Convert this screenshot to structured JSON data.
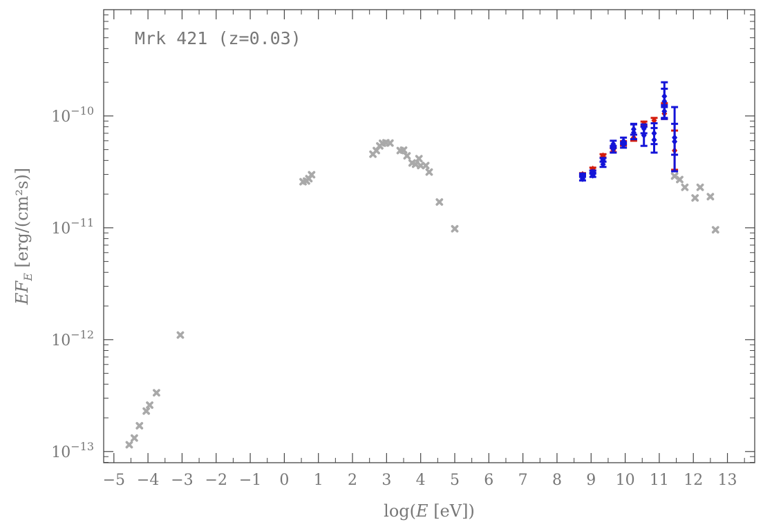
{
  "chart_data": {
    "type": "scatter",
    "annotation": "Mrk 421 (z=0.03)",
    "xlabel": {
      "pre": "log(",
      "italic": "E",
      "post": " [eV])"
    },
    "ylabel": {
      "main": "EF",
      "sub": "E",
      "unit": " [erg/(cm²s)]"
    },
    "xlim": [
      -5.3,
      13.8
    ],
    "ylim_log10": [
      -13.1,
      -9.05
    ],
    "x_ticks": [
      "−5",
      "−4",
      "−3",
      "−2",
      "−1",
      "0",
      "1",
      "2",
      "3",
      "4",
      "5",
      "6",
      "7",
      "8",
      "9",
      "10",
      "11",
      "12",
      "13"
    ],
    "y_ticks": [
      {
        "base": "10",
        "exp": "−13"
      },
      {
        "base": "10",
        "exp": "−12"
      },
      {
        "base": "10",
        "exp": "−11"
      },
      {
        "base": "10",
        "exp": "−10"
      }
    ],
    "grid": false,
    "colors": {
      "archival": "#a9a9a9",
      "red": "#d41c0c",
      "blue": "#1414d8",
      "frame": "#444444"
    },
    "series": [
      {
        "marker": "cross",
        "color": "#a9a9a9",
        "points": [
          [
            -4.55,
            1.15e-13
          ],
          [
            -4.4,
            1.32e-13
          ],
          [
            -4.25,
            1.7e-13
          ],
          [
            -4.05,
            2.3e-13
          ],
          [
            -3.95,
            2.6e-13
          ],
          [
            -3.75,
            3.35e-13
          ],
          [
            -3.05,
            1.1e-12
          ],
          [
            0.55,
            2.58e-11
          ],
          [
            0.65,
            2.62e-11
          ],
          [
            0.72,
            2.75e-11
          ],
          [
            0.8,
            2.98e-11
          ],
          [
            2.6,
            4.55e-11
          ],
          [
            2.7,
            4.9e-11
          ],
          [
            2.8,
            5.4e-11
          ],
          [
            2.88,
            5.7e-11
          ],
          [
            2.98,
            5.75e-11
          ],
          [
            3.1,
            5.72e-11
          ],
          [
            3.4,
            4.9e-11
          ],
          [
            3.5,
            4.95e-11
          ],
          [
            3.6,
            4.4e-11
          ],
          [
            3.75,
            3.8e-11
          ],
          [
            3.85,
            3.7e-11
          ],
          [
            3.95,
            4.15e-11
          ],
          [
            4.0,
            3.6e-11
          ],
          [
            4.15,
            3.6e-11
          ],
          [
            4.25,
            3.15e-11
          ],
          [
            4.55,
            1.7e-11
          ],
          [
            5.0,
            9.8e-12
          ],
          [
            11.45,
            2.9e-11
          ],
          [
            11.6,
            2.7e-11
          ],
          [
            11.75,
            2.3e-11
          ],
          [
            12.05,
            1.85e-11
          ],
          [
            12.2,
            2.3e-11
          ],
          [
            12.5,
            1.9e-11
          ],
          [
            12.65,
            9.6e-12
          ]
        ]
      },
      {
        "marker": "errorbar",
        "color": "#d41c0c",
        "points": [
          [
            8.75,
            3e-11,
            2.92e-11,
            3.08e-11
          ],
          [
            9.05,
            3.35e-11,
            3.25e-11,
            3.45e-11
          ],
          [
            9.35,
            4.4e-11,
            4.25e-11,
            4.55e-11
          ],
          [
            9.65,
            4.95e-11,
            4.75e-11,
            5.15e-11
          ],
          [
            9.95,
            5.7e-11,
            5.45e-11,
            5.95e-11
          ],
          [
            10.25,
            6.4e-11,
            6e-11,
            6.8e-11
          ],
          [
            10.55,
            8.5e-11,
            8.1e-11,
            8.9e-11
          ],
          [
            10.85,
            9.1e-11,
            8.6e-11,
            9.6e-11
          ],
          [
            11.15,
            1.05e-10,
            9.4e-11,
            1.3e-10
          ],
          [
            11.45,
            4.9e-11,
            3.3e-11,
            7.4e-11
          ]
        ]
      },
      {
        "marker": "errorbar",
        "color": "#1414d8",
        "points": [
          [
            8.75,
            2.75e-11,
            2.65e-11,
            2.95e-11
          ],
          [
            8.75,
            2.95e-11,
            2.85e-11,
            3.05e-11
          ],
          [
            9.05,
            2.95e-11,
            2.85e-11,
            3.1e-11
          ],
          [
            9.05,
            3.15e-11,
            3.05e-11,
            3.25e-11
          ],
          [
            9.35,
            3.7e-11,
            3.5e-11,
            3.9e-11
          ],
          [
            9.35,
            4.05e-11,
            3.9e-11,
            4.2e-11
          ],
          [
            9.65,
            5.05e-11,
            4.7e-11,
            5.4e-11
          ],
          [
            9.65,
            5.6e-11,
            5.2e-11,
            6e-11
          ],
          [
            9.95,
            5.5e-11,
            5.2e-11,
            5.8e-11
          ],
          [
            9.95,
            5.95e-11,
            5.6e-11,
            6.4e-11
          ],
          [
            10.25,
            7.1e-11,
            6.2e-11,
            8.4e-11
          ],
          [
            10.25,
            7.6e-11,
            6.8e-11,
            8.5e-11
          ],
          [
            10.55,
            6.7e-11,
            5.4e-11,
            8e-11
          ],
          [
            10.55,
            7.7e-11,
            7e-11,
            8.4e-11
          ],
          [
            10.85,
            6.1e-11,
            4.7e-11,
            7.8e-11
          ],
          [
            10.85,
            7e-11,
            5.6e-11,
            8.6e-11
          ],
          [
            11.15,
            1.1e-10,
            9.4e-11,
            1.25e-10
          ],
          [
            11.15,
            1.35e-10,
            9.6e-11,
            2e-10
          ],
          [
            11.15,
            1.5e-10,
            1.2e-10,
            1.75e-10
          ],
          [
            11.45,
            5.9e-11,
            3.2e-11,
            1.2e-10
          ],
          [
            11.45,
            6.4e-11,
            4.5e-11,
            8.5e-11
          ]
        ]
      }
    ]
  }
}
